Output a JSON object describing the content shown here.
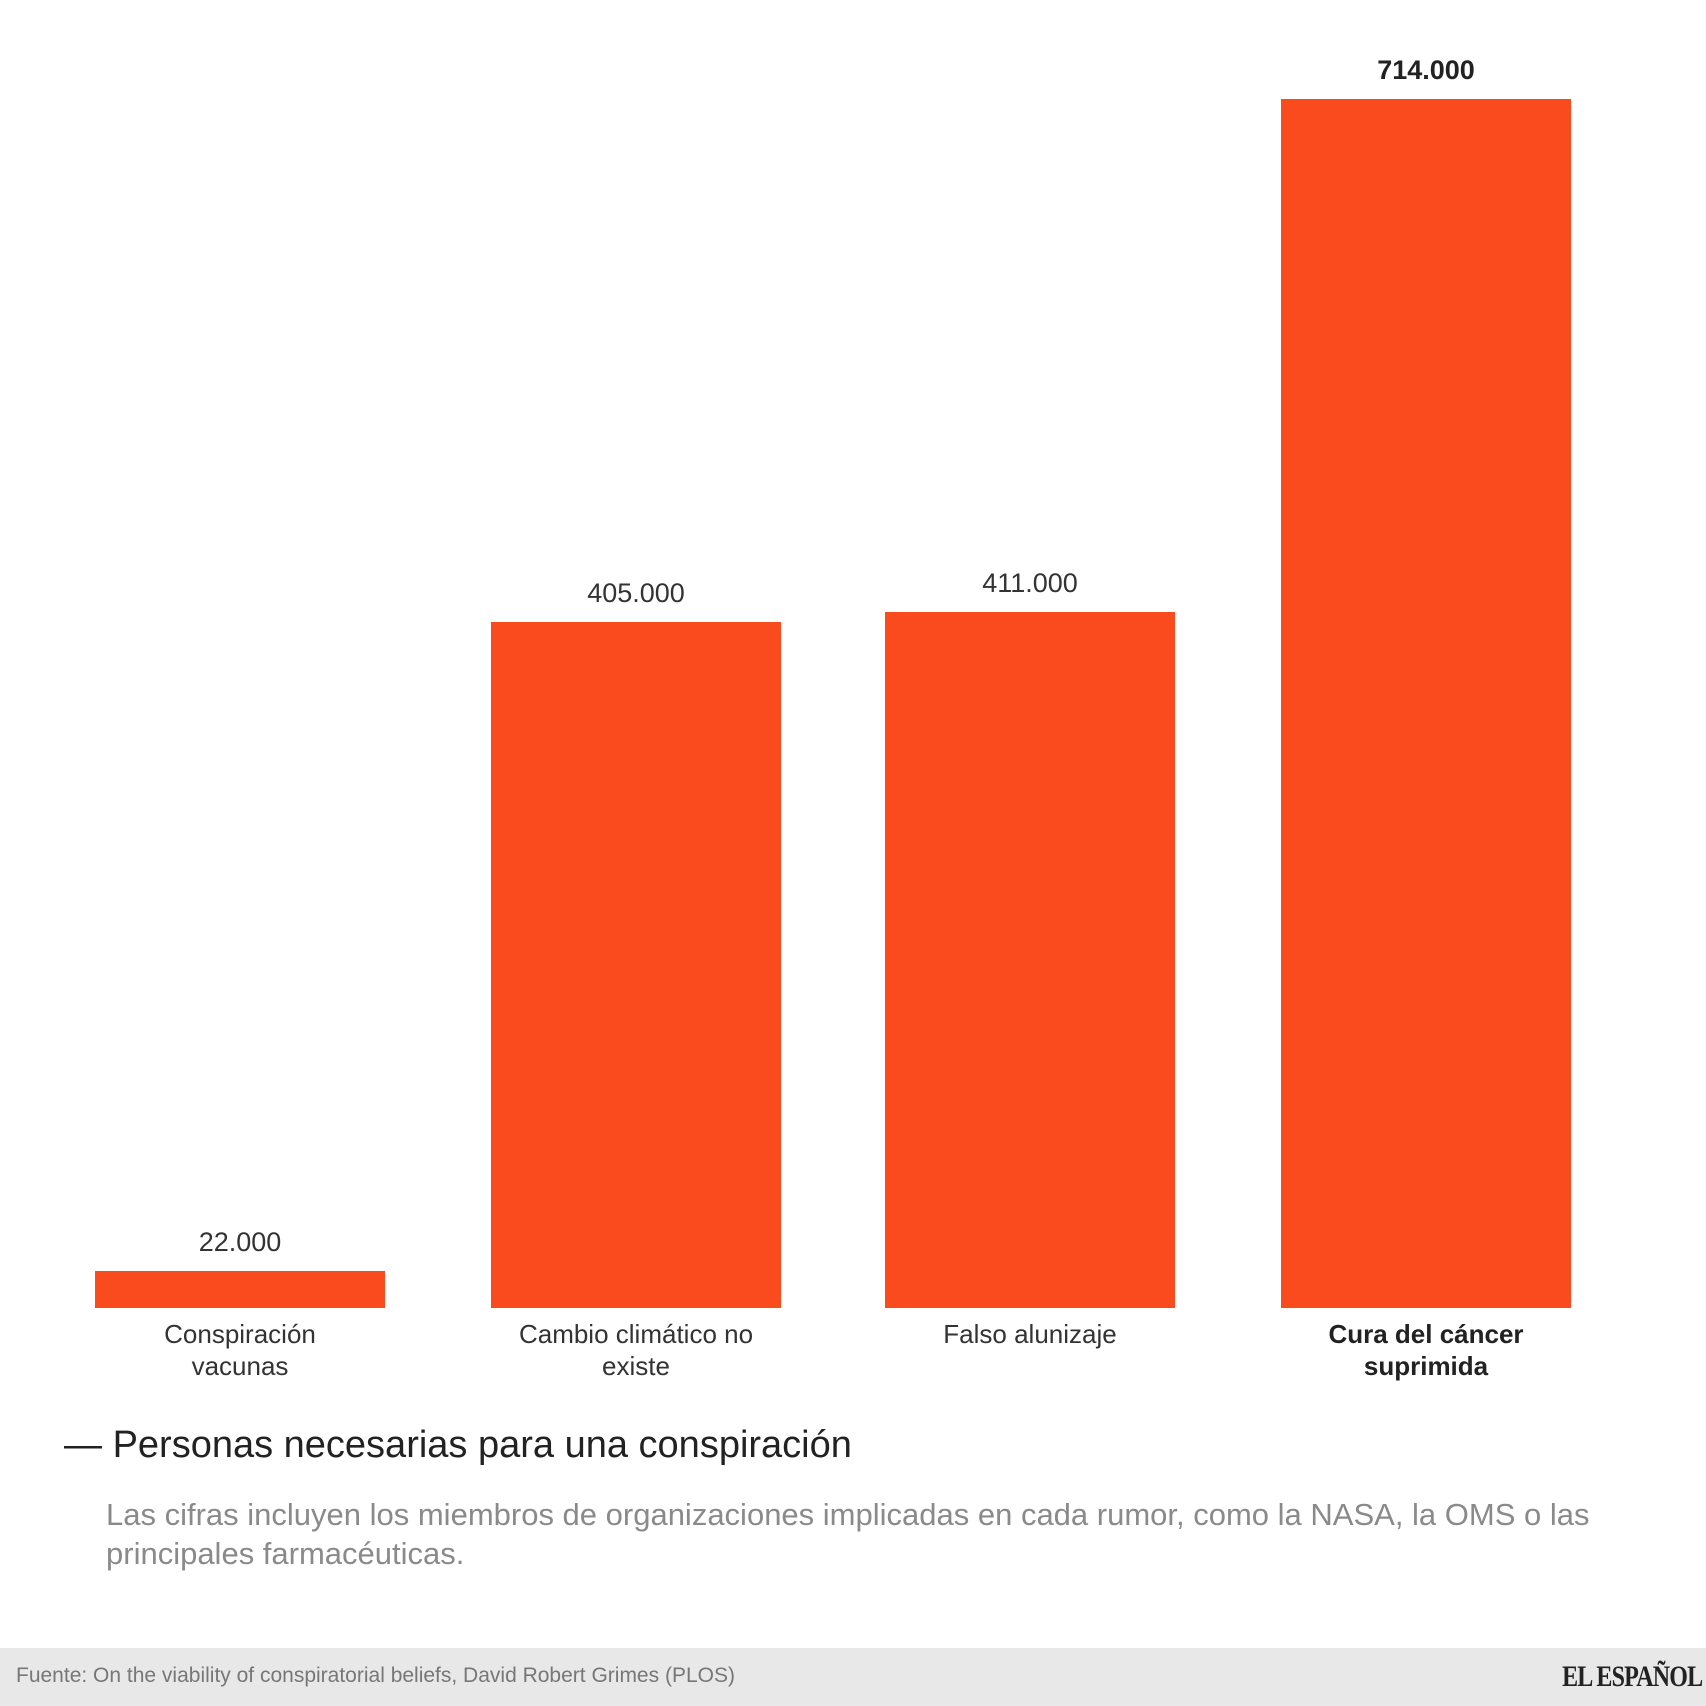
{
  "chart_data": {
    "type": "bar",
    "title": "Personas necesarias para una conspiración",
    "subtitle": "Las cifras incluyen los miembros de organizaciones implicadas en cada rumor, como la NASA, la OMS o las principales farmacéuticas.",
    "categories": [
      "Conspiración vacunas",
      "Cambio climático no existe",
      "Falso alunizaje",
      "Cura del cáncer suprimida"
    ],
    "category_lines": [
      [
        "Conspiración",
        "vacunas"
      ],
      [
        "Cambio climático no",
        "existe"
      ],
      [
        "Falso alunizaje"
      ],
      [
        "Cura del cáncer",
        "suprimida"
      ]
    ],
    "values": [
      22000,
      405000,
      411000,
      714000
    ],
    "value_labels": [
      "22.000",
      "405.000",
      "411.000",
      "714.000"
    ],
    "highlighted_index": 3,
    "xlabel": "",
    "ylabel": "",
    "ylim": [
      0,
      714000
    ],
    "grid": false,
    "legend": "none",
    "bar_color": "#f94b1e"
  },
  "title_dash": "—",
  "footer": {
    "source": "Fuente: On the viability of conspiratorial beliefs, David Robert Grimes (PLOS)",
    "logo": "EL ESPAÑOL"
  }
}
